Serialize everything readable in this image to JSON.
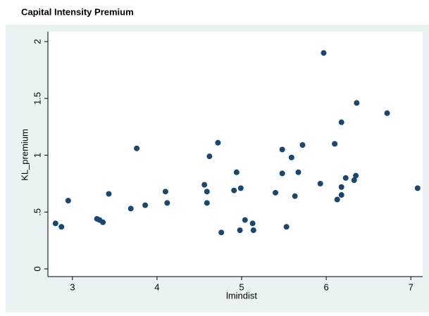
{
  "chart_data": {
    "type": "scatter",
    "title": "Capital Intensity Premium",
    "x_label": "lmindist",
    "y_label": "KL_premium",
    "x": [
      2.8,
      2.87,
      2.95,
      3.29,
      3.32,
      3.36,
      3.43,
      3.69,
      3.76,
      3.86,
      4.1,
      4.12,
      4.56,
      4.59,
      4.59,
      4.62,
      4.72,
      4.76,
      4.91,
      4.94,
      4.99,
      4.98,
      5.04,
      5.13,
      5.14,
      5.4,
      5.48,
      5.48,
      5.53,
      5.59,
      5.63,
      5.67,
      5.72,
      5.93,
      5.97,
      6.1,
      6.13,
      6.18,
      6.18,
      6.18,
      6.23,
      6.33,
      6.35,
      6.36,
      6.72,
      7.08
    ],
    "values": [
      0.4,
      0.37,
      0.6,
      0.44,
      0.43,
      0.41,
      0.66,
      0.53,
      1.06,
      0.56,
      0.68,
      0.58,
      0.74,
      0.68,
      0.58,
      0.99,
      1.11,
      0.32,
      0.69,
      0.85,
      0.71,
      0.34,
      0.43,
      0.4,
      0.34,
      0.67,
      1.05,
      0.84,
      0.37,
      0.98,
      0.64,
      0.85,
      1.09,
      0.75,
      1.9,
      1.1,
      0.61,
      0.65,
      0.72,
      1.29,
      0.8,
      0.78,
      0.82,
      1.46,
      1.37,
      0.71
    ],
    "color": "#1a476f",
    "xlim": [
      2.71,
      7.14
    ],
    "xticks": [
      3,
      4,
      5,
      6,
      7
    ],
    "ylim": [
      -0.068,
      2.087
    ],
    "yticks": [
      0,
      {
        "value": 0.5,
        "label": ".5"
      },
      1,
      1.5,
      2
    ],
    "grid": false
  }
}
